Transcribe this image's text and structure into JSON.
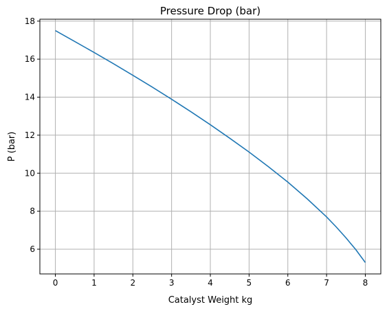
{
  "chart_data": {
    "type": "line",
    "title": "Pressure Drop (bar)",
    "xlabel": "Catalyst Weight kg",
    "ylabel": "P (bar)",
    "xlim": [
      -0.4,
      8.4
    ],
    "ylim": [
      4.7,
      18.1
    ],
    "xticks": [
      0,
      1,
      2,
      3,
      4,
      5,
      6,
      7,
      8
    ],
    "yticks": [
      6,
      8,
      10,
      12,
      14,
      16,
      18
    ],
    "grid": true,
    "line_color": "#1f77b4",
    "series": [
      {
        "x": [
          0,
          0.5,
          1,
          1.5,
          2,
          2.5,
          3,
          3.5,
          4,
          4.5,
          5,
          5.5,
          6,
          6.5,
          7,
          7.25,
          7.5,
          7.75,
          8
        ],
        "y": [
          17.5,
          16.93,
          16.35,
          15.76,
          15.15,
          14.53,
          13.89,
          13.23,
          12.55,
          11.84,
          11.11,
          10.34,
          9.53,
          8.65,
          7.7,
          7.17,
          6.6,
          5.99,
          5.3
        ]
      }
    ]
  }
}
